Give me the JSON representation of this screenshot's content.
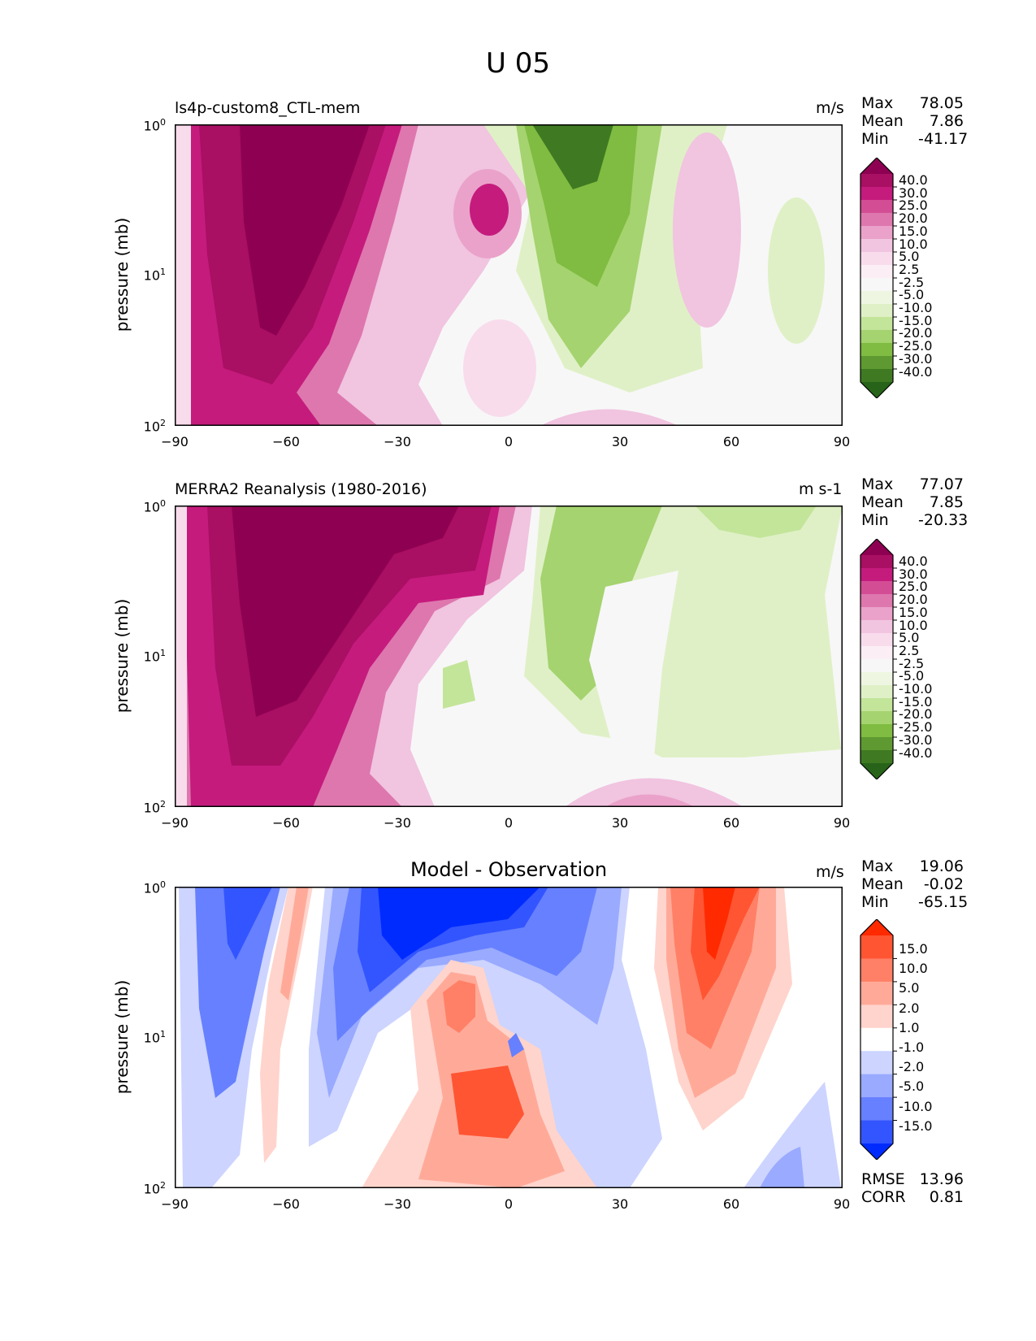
{
  "figure": {
    "title": "U 05"
  },
  "chart_data": [
    {
      "type": "heatmap",
      "title": "ls4p-custom8_CTL-mem",
      "units": "m/s",
      "ylabel": "pressure (mb)",
      "x_ticks": [
        "−90",
        "−60",
        "−30",
        "0",
        "30",
        "60",
        "90"
      ],
      "xlim": [
        -90,
        90
      ],
      "y_ticks": [
        "10^0",
        "10^1",
        "10^2"
      ],
      "y_ticks_display": [
        {
          "base": "10",
          "exp": "0"
        },
        {
          "base": "10",
          "exp": "1"
        },
        {
          "base": "10",
          "exp": "2"
        }
      ],
      "ylim": [
        100,
        1
      ],
      "stats": [
        {
          "label": "Max",
          "value": "78.05"
        },
        {
          "label": "Mean",
          "value": "7.86"
        },
        {
          "label": "Min",
          "value": "-41.17"
        }
      ],
      "colorbar_labels": [
        "40.0",
        "30.0",
        "25.0",
        "20.0",
        "15.0",
        "10.0",
        "5.0",
        "2.5",
        "-2.5",
        "-5.0",
        "-10.0",
        "-15.0",
        "-20.0",
        "-25.0",
        "-30.0",
        "-40.0"
      ],
      "colorbar_colors": [
        "#8e0152",
        "#a90f63",
        "#c51b7d",
        "#d34d95",
        "#de77ae",
        "#eaa2ca",
        "#f1c4e0",
        "#f8dcec",
        "#fbeef5",
        "#f7f7f7",
        "#eef6e2",
        "#dff0c6",
        "#c3e59a",
        "#a5d36f",
        "#7fbc41",
        "#5e9a31",
        "#3f7a22",
        "#276419"
      ]
    },
    {
      "type": "heatmap",
      "title": "MERRA2 Reanalysis (1980-2016)",
      "units": "m s-1",
      "ylabel": "pressure (mb)",
      "x_ticks": [
        "−90",
        "−60",
        "−30",
        "0",
        "30",
        "60",
        "90"
      ],
      "xlim": [
        -90,
        90
      ],
      "y_ticks": [
        "10^0",
        "10^1",
        "10^2"
      ],
      "y_ticks_display": [
        {
          "base": "10",
          "exp": "0"
        },
        {
          "base": "10",
          "exp": "1"
        },
        {
          "base": "10",
          "exp": "2"
        }
      ],
      "ylim": [
        100,
        1
      ],
      "stats": [
        {
          "label": "Max",
          "value": "77.07"
        },
        {
          "label": "Mean",
          "value": "7.85"
        },
        {
          "label": "Min",
          "value": "-20.33"
        }
      ],
      "colorbar_labels": [
        "40.0",
        "30.0",
        "25.0",
        "20.0",
        "15.0",
        "10.0",
        "5.0",
        "2.5",
        "-2.5",
        "-5.0",
        "-10.0",
        "-15.0",
        "-20.0",
        "-25.0",
        "-30.0",
        "-40.0"
      ],
      "colorbar_colors": [
        "#8e0152",
        "#a90f63",
        "#c51b7d",
        "#d34d95",
        "#de77ae",
        "#eaa2ca",
        "#f1c4e0",
        "#f8dcec",
        "#fbeef5",
        "#f7f7f7",
        "#eef6e2",
        "#dff0c6",
        "#c3e59a",
        "#a5d36f",
        "#7fbc41",
        "#5e9a31",
        "#3f7a22",
        "#276419"
      ]
    },
    {
      "type": "heatmap",
      "title": "Model - Observation",
      "units": "m/s",
      "ylabel": "pressure (mb)",
      "x_ticks": [
        "−90",
        "−60",
        "−30",
        "0",
        "30",
        "60",
        "90"
      ],
      "xlim": [
        -90,
        90
      ],
      "y_ticks": [
        "10^0",
        "10^1",
        "10^2"
      ],
      "y_ticks_display": [
        {
          "base": "10",
          "exp": "0"
        },
        {
          "base": "10",
          "exp": "1"
        },
        {
          "base": "10",
          "exp": "2"
        }
      ],
      "ylim": [
        100,
        1
      ],
      "stats": [
        {
          "label": "Max",
          "value": "19.06"
        },
        {
          "label": "Mean",
          "value": "-0.02"
        },
        {
          "label": "Min",
          "value": "-65.15"
        }
      ],
      "extra_stats": [
        {
          "label": "RMSE",
          "value": "13.96"
        },
        {
          "label": "CORR",
          "value": "0.81"
        }
      ],
      "colorbar_labels": [
        "15.0",
        "10.0",
        "5.0",
        "2.0",
        "1.0",
        "-1.0",
        "-2.0",
        "-5.0",
        "-10.0",
        "-15.0"
      ],
      "colorbar_colors": [
        "#ff2a00",
        "#ff5533",
        "#ff8066",
        "#ffaa99",
        "#ffd4cc",
        "#ffffff",
        "#ccd4ff",
        "#99aaff",
        "#6680ff",
        "#3355ff",
        "#002bff"
      ]
    }
  ]
}
